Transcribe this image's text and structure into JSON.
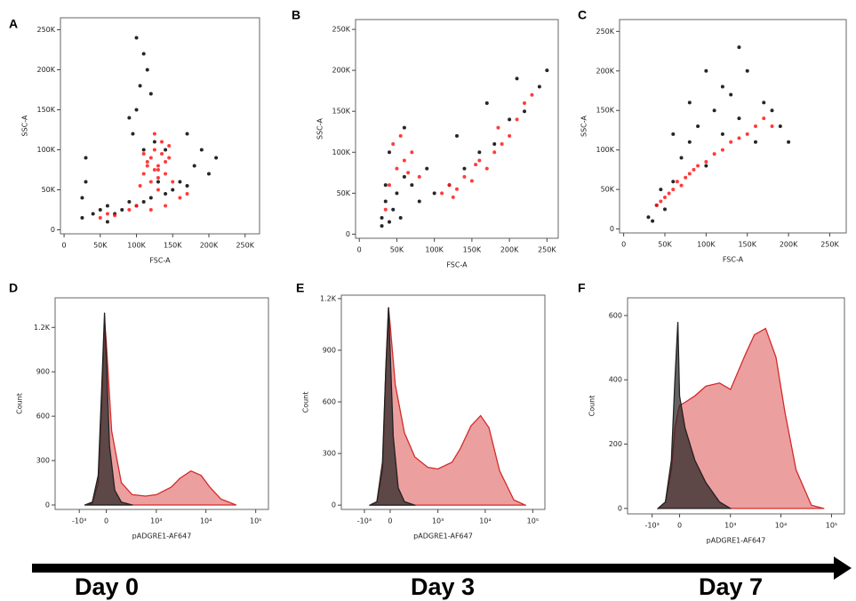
{
  "chart_data": [
    {
      "type": "scatter",
      "title": "A",
      "xlabel": "FSC-A",
      "ylabel": "SSC-A",
      "xlim": [
        -5000,
        270000
      ],
      "ylim": [
        -5000,
        265000
      ],
      "xticks": [
        0,
        {
          "value": 50000,
          "label": "50K"
        },
        {
          "value": 100000,
          "label": "100K"
        },
        {
          "value": 150000,
          "label": "150K"
        },
        {
          "value": 200000,
          "label": "200K"
        },
        {
          "value": 250000,
          "label": "250K"
        }
      ],
      "yticks": [
        0,
        {
          "value": 50000,
          "label": "50K"
        },
        {
          "value": 100000,
          "label": "100K"
        },
        {
          "value": 150000,
          "label": "150K"
        },
        {
          "value": 200000,
          "label": "200K"
        },
        {
          "value": 250000,
          "label": "250K"
        }
      ],
      "series": [
        {
          "color": "#000000",
          "x": [
            25000,
            30000,
            40000,
            50000,
            60000,
            70000,
            80000,
            90000,
            100000,
            110000,
            120000,
            140000,
            150000,
            160000,
            170000,
            180000,
            200000,
            210000,
            95000,
            100000,
            105000,
            110000,
            115000,
            120000,
            90000,
            100000,
            110000,
            130000,
            125000,
            140000,
            30000,
            25000,
            60000,
            170000,
            190000
          ],
          "values": [
            15000,
            60000,
            20000,
            25000,
            30000,
            20000,
            25000,
            35000,
            30000,
            35000,
            40000,
            45000,
            50000,
            60000,
            55000,
            80000,
            70000,
            90000,
            120000,
            150000,
            180000,
            220000,
            200000,
            170000,
            140000,
            240000,
            100000,
            60000,
            110000,
            100000,
            90000,
            40000,
            10000,
            120000,
            100000
          ]
        },
        {
          "color": "#ff1a1a",
          "x": [
            110000,
            115000,
            120000,
            125000,
            130000,
            135000,
            140000,
            120000,
            125000,
            130000,
            135000,
            115000,
            140000,
            145000,
            130000,
            110000,
            150000,
            50000,
            60000,
            70000,
            120000,
            140000,
            160000,
            170000,
            100000,
            90000,
            130000,
            125000,
            145000,
            105000
          ],
          "values": [
            70000,
            85000,
            90000,
            75000,
            80000,
            95000,
            70000,
            60000,
            100000,
            65000,
            110000,
            80000,
            85000,
            90000,
            75000,
            95000,
            60000,
            15000,
            20000,
            18000,
            25000,
            30000,
            40000,
            45000,
            30000,
            25000,
            50000,
            120000,
            105000,
            55000
          ]
        }
      ]
    },
    {
      "type": "scatter",
      "title": "B",
      "xlabel": "FSC-A",
      "ylabel": "SSC-A",
      "xlim": [
        -5000,
        265000
      ],
      "ylim": [
        -5000,
        262000
      ],
      "xticks": [
        0,
        {
          "value": 50000,
          "label": "50K"
        },
        {
          "value": 100000,
          "label": "100K"
        },
        {
          "value": 150000,
          "label": "150K"
        },
        {
          "value": 200000,
          "label": "200K"
        },
        {
          "value": 250000,
          "label": "250K"
        }
      ],
      "yticks": [
        0,
        {
          "value": 50000,
          "label": "50K"
        },
        {
          "value": 100000,
          "label": "100K"
        },
        {
          "value": 150000,
          "label": "150K"
        },
        {
          "value": 200000,
          "label": "200K"
        },
        {
          "value": 250000,
          "label": "250K"
        }
      ],
      "series": [
        {
          "color": "#000000",
          "x": [
            30000,
            35000,
            40000,
            45000,
            50000,
            60000,
            70000,
            80000,
            100000,
            120000,
            140000,
            160000,
            180000,
            200000,
            220000,
            240000,
            250000,
            40000,
            60000,
            90000,
            130000,
            170000,
            210000,
            30000,
            55000,
            35000
          ],
          "values": [
            20000,
            40000,
            15000,
            30000,
            50000,
            70000,
            60000,
            40000,
            50000,
            60000,
            80000,
            100000,
            110000,
            140000,
            150000,
            180000,
            200000,
            100000,
            130000,
            80000,
            120000,
            160000,
            190000,
            10000,
            20000,
            60000
          ]
        },
        {
          "color": "#ff1a1a",
          "x": [
            40000,
            50000,
            60000,
            70000,
            80000,
            45000,
            55000,
            110000,
            120000,
            130000,
            140000,
            150000,
            160000,
            170000,
            180000,
            190000,
            200000,
            210000,
            220000,
            230000,
            35000,
            65000,
            125000,
            155000,
            185000
          ],
          "values": [
            60000,
            80000,
            90000,
            100000,
            70000,
            110000,
            120000,
            50000,
            60000,
            55000,
            70000,
            65000,
            90000,
            80000,
            100000,
            110000,
            120000,
            140000,
            160000,
            170000,
            30000,
            75000,
            45000,
            85000,
            130000
          ]
        }
      ]
    },
    {
      "type": "scatter",
      "title": "C",
      "xlabel": "FSC-A",
      "ylabel": "SSC-A",
      "xlim": [
        -5000,
        270000
      ],
      "ylim": [
        -5000,
        265000
      ],
      "xticks": [
        0,
        {
          "value": 50000,
          "label": "50K"
        },
        {
          "value": 100000,
          "label": "100K"
        },
        {
          "value": 150000,
          "label": "150K"
        },
        {
          "value": 200000,
          "label": "200K"
        },
        {
          "value": 250000,
          "label": "250K"
        }
      ],
      "yticks": [
        0,
        {
          "value": 50000,
          "label": "50K"
        },
        {
          "value": 100000,
          "label": "100K"
        },
        {
          "value": 150000,
          "label": "150K"
        },
        {
          "value": 200000,
          "label": "200K"
        },
        {
          "value": 250000,
          "label": "250K"
        }
      ],
      "series": [
        {
          "color": "#000000",
          "x": [
            30000,
            40000,
            50000,
            60000,
            70000,
            80000,
            90000,
            100000,
            110000,
            120000,
            130000,
            140000,
            150000,
            160000,
            170000,
            180000,
            190000,
            200000,
            60000,
            80000,
            100000,
            120000,
            140000,
            45000,
            35000
          ],
          "values": [
            15000,
            30000,
            25000,
            60000,
            90000,
            110000,
            130000,
            80000,
            150000,
            120000,
            170000,
            140000,
            200000,
            110000,
            160000,
            150000,
            130000,
            110000,
            120000,
            160000,
            200000,
            180000,
            230000,
            50000,
            10000
          ]
        },
        {
          "color": "#ff1a1a",
          "x": [
            40000,
            45000,
            50000,
            55000,
            60000,
            65000,
            70000,
            75000,
            80000,
            85000,
            90000,
            100000,
            110000,
            120000,
            130000,
            140000,
            150000,
            160000,
            170000,
            180000
          ],
          "values": [
            30000,
            35000,
            40000,
            45000,
            50000,
            60000,
            55000,
            65000,
            70000,
            75000,
            80000,
            85000,
            95000,
            100000,
            110000,
            115000,
            120000,
            130000,
            140000,
            130000
          ]
        }
      ]
    },
    {
      "type": "area",
      "title": "D",
      "xlabel": "pADGRE1-AF647",
      "ylabel": "Count",
      "xscale": "biex",
      "xlim": [
        -8000,
        180000
      ],
      "ylim": [
        -30,
        1400
      ],
      "xticks": [
        {
          "value": -1000,
          "label": "-10³"
        },
        0,
        {
          "value": 1000,
          "label": "10³"
        },
        {
          "value": 10000,
          "label": "10⁴"
        },
        {
          "value": 100000,
          "label": "10⁵"
        }
      ],
      "yticks": [
        0,
        300,
        600,
        900,
        {
          "value": 1200,
          "label": "1.2K"
        }
      ],
      "series": [
        {
          "color": "#d42a2a",
          "x": [
            -600,
            -300,
            -150,
            -80,
            -30,
            0,
            50,
            150,
            300,
            600,
            1000,
            2000,
            3000,
            5000,
            8000,
            12000,
            20000,
            40000
          ],
          "values": [
            0,
            10,
            150,
            700,
            1250,
            1100,
            500,
            150,
            70,
            60,
            70,
            120,
            180,
            230,
            200,
            120,
            40,
            0
          ]
        },
        {
          "color": "#222222",
          "x": [
            -600,
            -300,
            -150,
            -80,
            -30,
            0,
            30,
            80,
            150,
            300
          ],
          "values": [
            0,
            20,
            200,
            800,
            1300,
            1000,
            400,
            100,
            20,
            0
          ]
        }
      ]
    },
    {
      "type": "area",
      "title": "E",
      "xlabel": "pADGRE1-AF647",
      "ylabel": "Count",
      "xscale": "biex",
      "xlim": [
        -8000,
        180000
      ],
      "ylim": [
        -25,
        1220
      ],
      "xticks": [
        {
          "value": -1000,
          "label": "-10³"
        },
        0,
        {
          "value": 1000,
          "label": "10³"
        },
        {
          "value": 10000,
          "label": "10⁴"
        },
        {
          "value": 100000,
          "label": "10⁵"
        }
      ],
      "yticks": [
        0,
        300,
        600,
        900,
        {
          "value": 1200,
          "label": "1.2K"
        }
      ],
      "series": [
        {
          "color": "#d42a2a",
          "x": [
            -600,
            -300,
            -150,
            -80,
            -30,
            0,
            50,
            150,
            300,
            600,
            1000,
            2000,
            3000,
            5000,
            8000,
            12000,
            20000,
            40000,
            70000
          ],
          "values": [
            0,
            20,
            200,
            800,
            1150,
            1050,
            700,
            420,
            280,
            220,
            210,
            250,
            330,
            460,
            520,
            450,
            200,
            30,
            0
          ]
        },
        {
          "color": "#222222",
          "x": [
            -600,
            -300,
            -150,
            -80,
            -30,
            0,
            30,
            80,
            150,
            300
          ],
          "values": [
            0,
            20,
            250,
            800,
            1150,
            900,
            400,
            100,
            20,
            0
          ]
        }
      ]
    },
    {
      "type": "area",
      "title": "F",
      "xlabel": "pADGRE1-AF647",
      "ylabel": "Count",
      "xscale": "biex",
      "xlim": [
        -8000,
        180000
      ],
      "ylim": [
        -17,
        655
      ],
      "xticks": [
        {
          "value": -1000,
          "label": "-10³"
        },
        0,
        {
          "value": 1000,
          "label": "10³"
        },
        {
          "value": 10000,
          "label": "10⁴"
        },
        {
          "value": 100000,
          "label": "10⁵"
        }
      ],
      "yticks": [
        0,
        200,
        400,
        600
      ],
      "series": [
        {
          "color": "#d42a2a",
          "x": [
            -600,
            -300,
            -150,
            -80,
            -30,
            0,
            50,
            150,
            300,
            600,
            1000,
            2000,
            3000,
            5000,
            8000,
            12000,
            20000,
            40000,
            70000
          ],
          "values": [
            0,
            20,
            120,
            250,
            300,
            320,
            330,
            350,
            380,
            390,
            370,
            480,
            540,
            560,
            470,
            300,
            120,
            10,
            0
          ]
        },
        {
          "color": "#222222",
          "x": [
            -600,
            -300,
            -150,
            -80,
            -30,
            0,
            50,
            150,
            300,
            600,
            1000
          ],
          "values": [
            0,
            20,
            150,
            400,
            580,
            350,
            250,
            150,
            80,
            20,
            0
          ]
        }
      ]
    }
  ],
  "footer": {
    "labels": [
      "Day 0",
      "Day 3",
      "Day 7"
    ]
  }
}
